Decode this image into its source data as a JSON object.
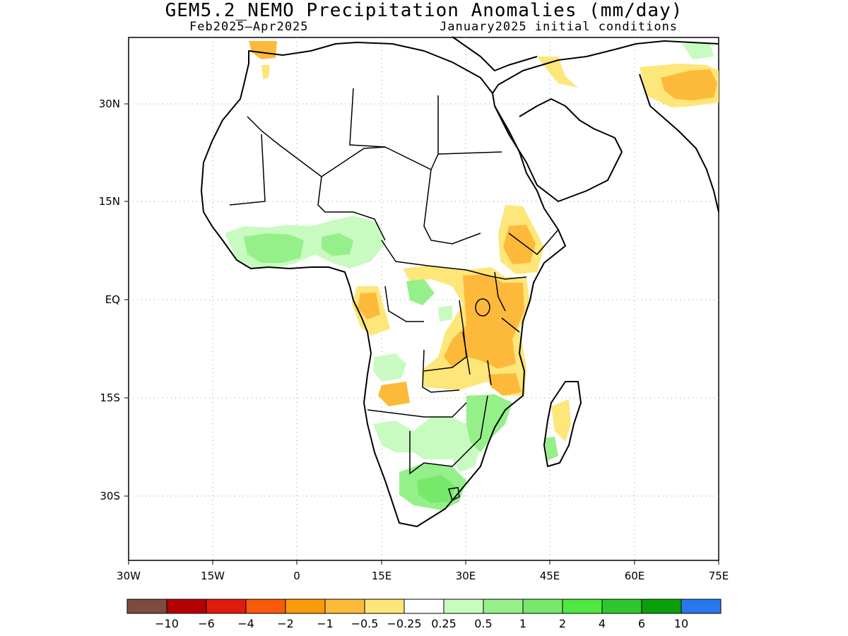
{
  "title": "GEM5.2_NEMO Precipitation Anomalies (mm/day)",
  "period": "Feb2025–Apr2025",
  "init": "January2025 initial conditions",
  "lat_ticks": [
    "30N",
    "15N",
    "EQ",
    "15S",
    "30S"
  ],
  "lon_ticks": [
    "30W",
    "15W",
    "0",
    "15E",
    "30E",
    "45E",
    "60E",
    "75E"
  ],
  "colorbar": {
    "colors": [
      "#7b4c3f",
      "#b30000",
      "#e01b10",
      "#fa5a0a",
      "#fa9a0a",
      "#fdba3a",
      "#fde67a",
      "#ffffff",
      "#c8fbc0",
      "#96f08a",
      "#78e86a",
      "#4de842",
      "#2ec82e",
      "#0aa00a",
      "#2878f0"
    ],
    "labels": [
      "−10",
      "−6",
      "−4",
      "−2",
      "−1",
      "−0.5",
      "−0.25",
      "0.25",
      "0.5",
      "1",
      "2",
      "4",
      "6",
      "10"
    ]
  }
}
